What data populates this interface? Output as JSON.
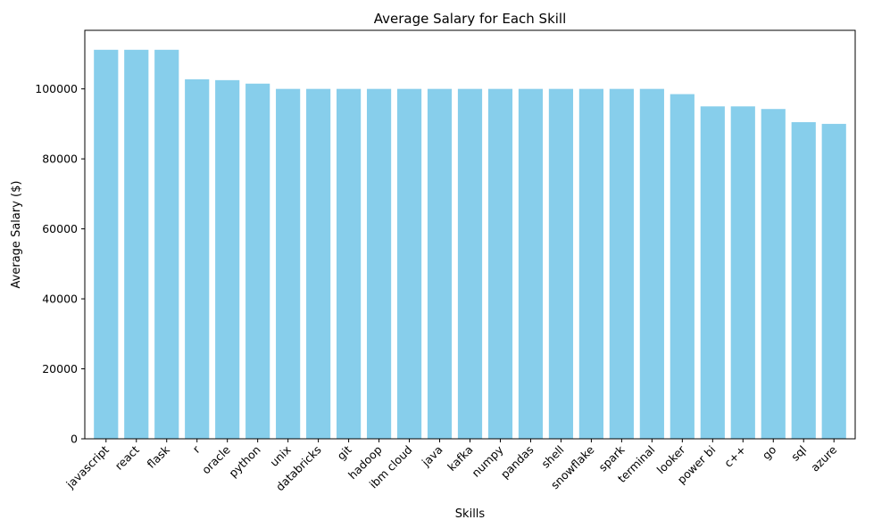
{
  "chart_data": {
    "type": "bar",
    "title": "Average Salary for Each Skill",
    "xlabel": "Skills",
    "ylabel": "Average Salary ($)",
    "categories": [
      "javascript",
      "react",
      "flask",
      "r",
      "oracle",
      "python",
      "unix",
      "databricks",
      "git",
      "hadoop",
      "ibm cloud",
      "java",
      "kafka",
      "numpy",
      "pandas",
      "shell",
      "snowflake",
      "spark",
      "terminal",
      "looker",
      "power bi",
      "c++",
      "go",
      "sql",
      "azure"
    ],
    "values": [
      111175,
      111175,
      111175,
      102750,
      102500,
      101500,
      100000,
      100000,
      100000,
      100000,
      100000,
      100000,
      100000,
      100000,
      100000,
      100000,
      100000,
      100000,
      100000,
      98500,
      95000,
      95000,
      94250,
      90500,
      90000
    ],
    "ylim": [
      0,
      116736
    ],
    "yticks": [
      0,
      20000,
      40000,
      60000,
      80000,
      100000
    ],
    "bar_color": "#87ceeb",
    "grid": false,
    "legend": false
  }
}
